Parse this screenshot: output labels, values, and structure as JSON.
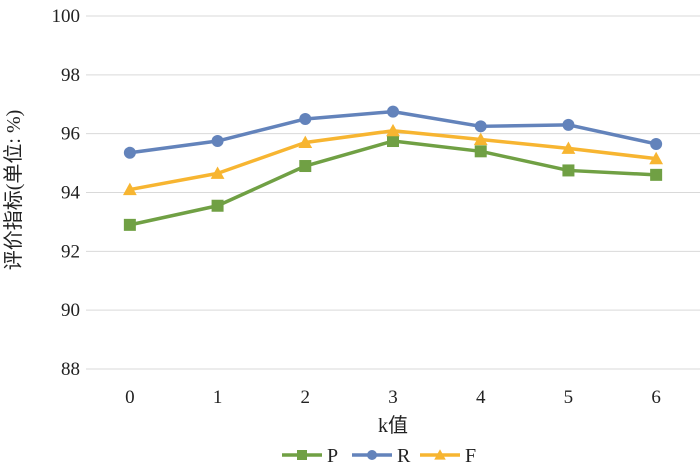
{
  "chart_data": {
    "type": "line",
    "title": "",
    "xlabel": "k值",
    "ylabel": "评价指标(单位: %)",
    "categories": [
      "0",
      "1",
      "2",
      "3",
      "4",
      "5",
      "6"
    ],
    "ylim": [
      88,
      100
    ],
    "yticks": [
      "88",
      "90",
      "92",
      "94",
      "96",
      "98",
      "100"
    ],
    "grid": true,
    "legend_position": "bottom",
    "series": [
      {
        "name": "P",
        "color": "#70a044",
        "marker": "square",
        "values": [
          92.9,
          93.55,
          94.9,
          95.75,
          95.4,
          94.75,
          94.6
        ]
      },
      {
        "name": "R",
        "color": "#6383bb",
        "marker": "circle",
        "values": [
          95.35,
          95.75,
          96.5,
          96.75,
          96.25,
          96.3,
          95.65
        ]
      },
      {
        "name": "F",
        "color": "#f7b531",
        "marker": "triangle",
        "values": [
          94.1,
          94.65,
          95.7,
          96.1,
          95.8,
          95.5,
          95.15
        ]
      }
    ]
  }
}
